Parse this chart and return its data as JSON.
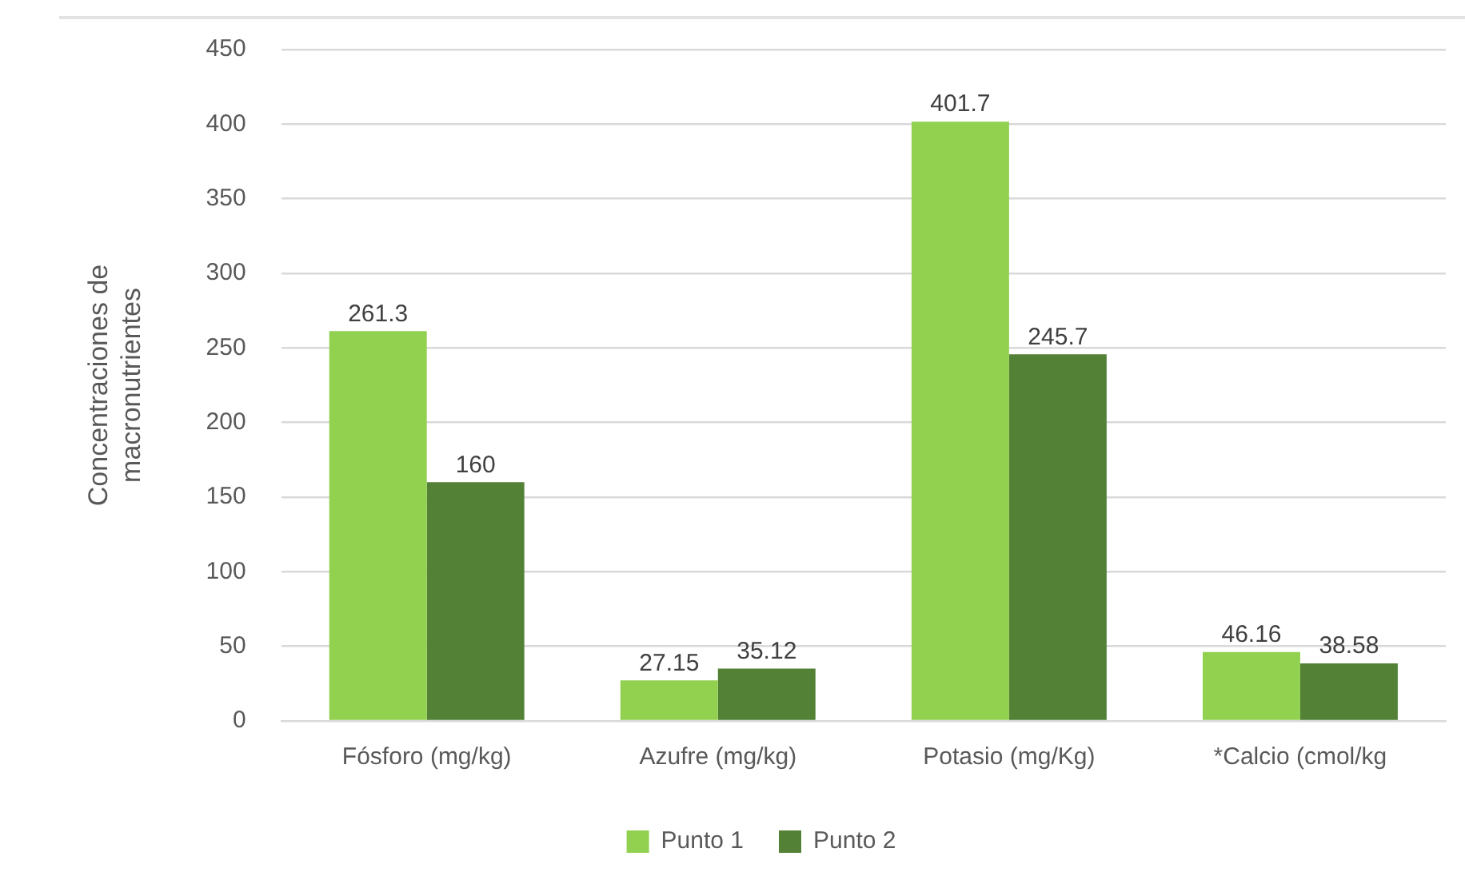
{
  "chart_data": {
    "type": "bar",
    "ylabel": "Concentraciones de macronutrientes",
    "categories": [
      "Fósforo (mg/kg)",
      "Azufre (mg/kg)",
      "Potasio (mg/Kg)",
      "*Calcio (cmol/kg"
    ],
    "series": [
      {
        "name": "Punto 1",
        "color": "#92d050",
        "values": [
          261.3,
          27.15,
          401.7,
          46.16
        ]
      },
      {
        "name": "Punto 2",
        "color": "#538135",
        "values": [
          160,
          35.12,
          245.7,
          38.58
        ]
      }
    ],
    "ylim": [
      0,
      450
    ],
    "yticks": [
      0,
      50,
      100,
      150,
      200,
      250,
      300,
      350,
      400,
      450
    ],
    "grid": "y",
    "legend": "bottom",
    "data_labels": true
  }
}
